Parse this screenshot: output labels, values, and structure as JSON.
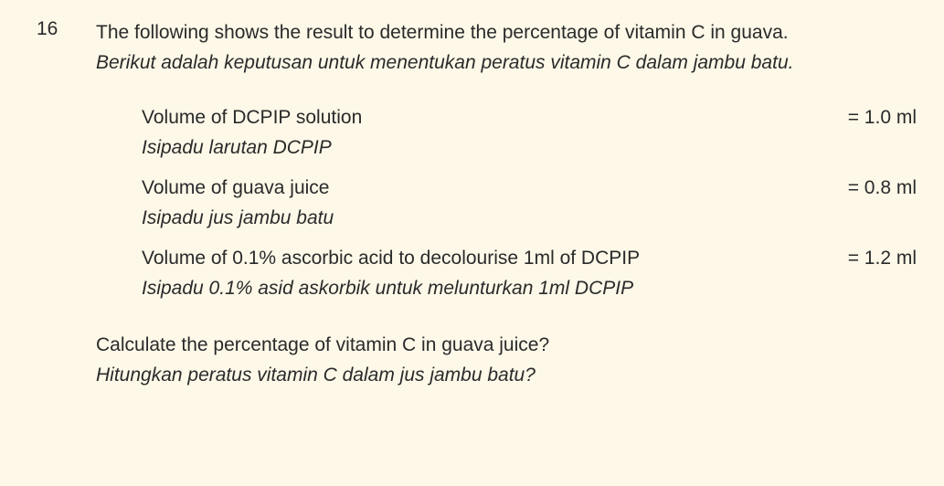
{
  "question": {
    "number": "16",
    "prompt_en": "The following shows the result to determine the percentage of vitamin C in guava.",
    "prompt_ms": "Berikut adalah keputusan untuk menentukan peratus vitamin C dalam jambu batu.",
    "calc_en": "Calculate the percentage of vitamin C in guava juice?",
    "calc_ms": "Hitungkan peratus vitamin C dalam jus jambu batu?"
  },
  "data_rows": [
    {
      "label_en": "Volume of DCPIP solution",
      "label_ms": "Isipadu larutan DCPIP",
      "value": "= 1.0 ml"
    },
    {
      "label_en": "Volume of guava juice",
      "label_ms": "Isipadu jus jambu batu",
      "value": "=  0.8 ml"
    },
    {
      "label_en": "Volume of 0.1% ascorbic acid to decolourise 1ml of DCPIP",
      "label_ms": "Isipadu 0.1% asid askorbik untuk melunturkan 1ml DCPIP",
      "value": "= 1.2 ml"
    }
  ],
  "style": {
    "background_color": "#fdf8e8",
    "text_color": "#2a2a2a",
    "font_size_pt": 16,
    "font_family": "Arial"
  }
}
